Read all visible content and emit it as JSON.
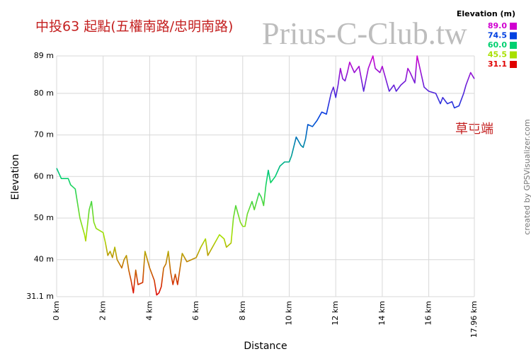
{
  "chart_data": {
    "type": "line",
    "title": "中投63 起點(五權南路/忠明南路)",
    "watermark": "Prius-C-Club.tw",
    "annotation": "草屯端",
    "credit": "created by GPSVisualizer.com",
    "xlabel": "Distance",
    "ylabel": "Elevation",
    "grid": true,
    "xlim": [
      0,
      17.96
    ],
    "ylim": [
      31.1,
      89
    ],
    "xticks": [
      {
        "value": 0,
        "label": "0 km"
      },
      {
        "value": 2,
        "label": "2 km"
      },
      {
        "value": 4,
        "label": "4 km"
      },
      {
        "value": 6,
        "label": "6 km"
      },
      {
        "value": 8,
        "label": "8 km"
      },
      {
        "value": 10,
        "label": "10 km"
      },
      {
        "value": 12,
        "label": "12 km"
      },
      {
        "value": 14,
        "label": "14 km"
      },
      {
        "value": 16,
        "label": "16 km"
      },
      {
        "value": 17.96,
        "label": "17.96 km"
      }
    ],
    "yticks": [
      {
        "value": 31.1,
        "label": "31.1 m"
      },
      {
        "value": 40,
        "label": "40 m"
      },
      {
        "value": 50,
        "label": "50 m"
      },
      {
        "value": 60,
        "label": "60 m"
      },
      {
        "value": 70,
        "label": "70 m"
      },
      {
        "value": 80,
        "label": "80 m"
      },
      {
        "value": 89,
        "label": "89 m"
      }
    ],
    "legend": {
      "title": "Elevation (m)",
      "position": "top-right",
      "entries": [
        {
          "value": 89,
          "label": "89.0",
          "color": "#d000d0"
        },
        {
          "value": 74.5,
          "label": "74.5",
          "color": "#0040e0"
        },
        {
          "value": 60,
          "label": "60.0",
          "color": "#00d070"
        },
        {
          "value": 45.5,
          "label": "45.5",
          "color": "#a8e000"
        },
        {
          "value": 31.1,
          "label": "31.1",
          "color": "#e00000"
        }
      ]
    },
    "x": [
      0,
      0.2,
      0.5,
      0.6,
      0.8,
      1.0,
      1.1,
      1.2,
      1.25,
      1.4,
      1.5,
      1.6,
      1.7,
      2.0,
      2.1,
      2.2,
      2.3,
      2.4,
      2.5,
      2.6,
      2.8,
      2.9,
      3.0,
      3.1,
      3.2,
      3.3,
      3.4,
      3.5,
      3.7,
      3.8,
      3.9,
      4.0,
      4.2,
      4.3,
      4.4,
      4.5,
      4.6,
      4.7,
      4.8,
      4.9,
      5.0,
      5.1,
      5.2,
      5.4,
      5.6,
      5.8,
      6.0,
      6.2,
      6.4,
      6.5,
      6.6,
      6.8,
      7.0,
      7.2,
      7.3,
      7.5,
      7.6,
      7.7,
      7.9,
      8.0,
      8.1,
      8.2,
      8.4,
      8.5,
      8.7,
      8.8,
      8.9,
      9.0,
      9.1,
      9.2,
      9.4,
      9.6,
      9.8,
      10.0,
      10.1,
      10.3,
      10.5,
      10.6,
      10.7,
      10.8,
      11.0,
      11.2,
      11.4,
      11.6,
      11.8,
      11.9,
      12.0,
      12.1,
      12.2,
      12.3,
      12.4,
      12.5,
      12.6,
      12.8,
      13.0,
      13.2,
      13.4,
      13.6,
      13.7,
      13.9,
      14.0,
      14.2,
      14.3,
      14.5,
      14.6,
      14.8,
      15.0,
      15.1,
      15.2,
      15.4,
      15.5,
      15.6,
      15.8,
      16.0,
      16.3,
      16.5,
      16.6,
      16.8,
      17.0,
      17.1,
      17.3,
      17.5,
      17.6,
      17.8,
      17.96
    ],
    "values": [
      62,
      59.5,
      59.5,
      58,
      57,
      50,
      48,
      46,
      44.5,
      52,
      54,
      49,
      47.5,
      46.5,
      44,
      41,
      42,
      40.5,
      43,
      40,
      38,
      40,
      41,
      37.5,
      35,
      32,
      37.5,
      34,
      34.5,
      42,
      40,
      38,
      35,
      31.5,
      32,
      33.5,
      38,
      39,
      42,
      37,
      34,
      36.5,
      34,
      41.5,
      39.5,
      40,
      40.5,
      43,
      45,
      41,
      42,
      44,
      46,
      45,
      43,
      44,
      50,
      53,
      49,
      48,
      48,
      51,
      54,
      52,
      56,
      55,
      53,
      58,
      61.5,
      58.5,
      60,
      62.5,
      63.5,
      63.5,
      65,
      69.5,
      67.5,
      67,
      69,
      72.5,
      72,
      73.5,
      75.5,
      75,
      80,
      81.5,
      79,
      82,
      86,
      83.5,
      83,
      85,
      87.5,
      85,
      86.5,
      80.5,
      86,
      89,
      86,
      85,
      86.5,
      82.5,
      80.5,
      82,
      80.5,
      82,
      83,
      86,
      85,
      82.5,
      89,
      86.5,
      81.5,
      80.5,
      80,
      77.5,
      79,
      77.5,
      78,
      76.5,
      77,
      80,
      82,
      85,
      83.5
    ]
  }
}
